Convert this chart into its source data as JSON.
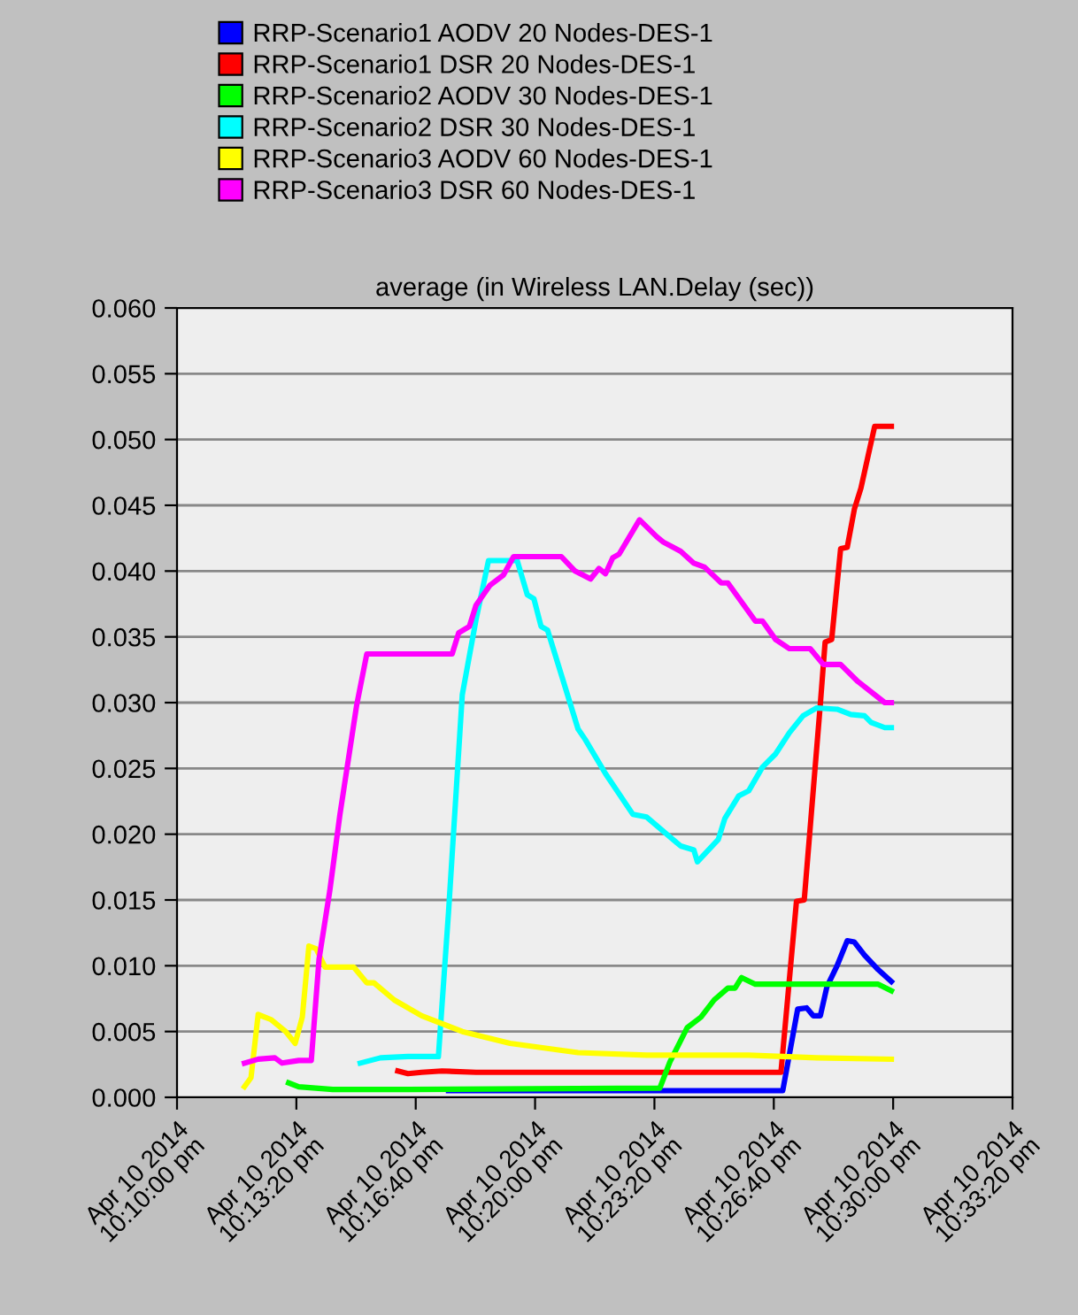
{
  "chart_data": {
    "type": "line",
    "title": "average (in Wireless LAN.Delay (sec))",
    "legend": "top",
    "grid": "y",
    "line_style": "solid",
    "marker": "none",
    "xlim": [
      "2014-04-10T22:10:00",
      "2014-04-10T22:33:20"
    ],
    "xticks": [
      {
        "value": "2014-04-10T22:10:00",
        "label": "Apr 10 2014\n10:10:00 pm"
      },
      {
        "value": "2014-04-10T22:13:20",
        "label": "Apr 10 2014\n10:13:20 pm"
      },
      {
        "value": "2014-04-10T22:16:40",
        "label": "Apr 10 2014\n10:16:40 pm"
      },
      {
        "value": "2014-04-10T22:20:00",
        "label": "Apr 10 2014\n10:20:00 pm"
      },
      {
        "value": "2014-04-10T22:23:20",
        "label": "Apr 10 2014\n10:23:20 pm"
      },
      {
        "value": "2014-04-10T22:26:40",
        "label": "Apr 10 2014\n10:26:40 pm"
      },
      {
        "value": "2014-04-10T22:30:00",
        "label": "Apr 10 2014\n10:30:00 pm"
      },
      {
        "value": "2014-04-10T22:33:20",
        "label": "Apr 10 2014\n10:33:20 pm"
      }
    ],
    "ylim": [
      0,
      0.06
    ],
    "yticks": [
      {
        "value": 0,
        "label": "0.000"
      },
      {
        "value": 0.005,
        "label": "0.005"
      },
      {
        "value": 0.01,
        "label": "0.010"
      },
      {
        "value": 0.015,
        "label": "0.015"
      },
      {
        "value": 0.02,
        "label": "0.020"
      },
      {
        "value": 0.025,
        "label": "0.025"
      },
      {
        "value": 0.03,
        "label": "0.030"
      },
      {
        "value": 0.035,
        "label": "0.035"
      },
      {
        "value": 0.04,
        "label": "0.040"
      },
      {
        "value": 0.045,
        "label": "0.045"
      },
      {
        "value": 0.05,
        "label": "0.050"
      },
      {
        "value": 0.055,
        "label": "0.055"
      },
      {
        "value": 0.06,
        "label": "0.060"
      }
    ],
    "series": [
      {
        "name": "RRP-Scenario1 AODV 20 Nodes-DES-1",
        "color": "#0000ff",
        "x": [
          "2014-04-10T22:17:35",
          "2014-04-10T22:26:55",
          "2014-04-10T22:27:20",
          "2014-04-10T22:27:35",
          "2014-04-10T22:27:46",
          "2014-04-10T22:27:58",
          "2014-04-10T22:28:09",
          "2014-04-10T22:28:26",
          "2014-04-10T22:28:43",
          "2014-04-10T22:28:55",
          "2014-04-10T22:29:12",
          "2014-04-10T22:29:35",
          "2014-04-10T22:29:57"
        ],
        "values": [
          0.0005,
          0.0005,
          0.0067,
          0.0068,
          0.0062,
          0.0062,
          0.0084,
          0.01,
          0.0119,
          0.0118,
          0.0108,
          0.0097,
          0.0088
        ]
      },
      {
        "name": "RRP-Scenario1 DSR 20 Nodes-DES-1",
        "color": "#ff0000",
        "x": [
          "2014-04-10T22:16:10",
          "2014-04-10T22:16:27",
          "2014-04-10T22:16:50",
          "2014-04-10T22:17:24",
          "2014-04-10T22:18:21",
          "2014-04-10T22:26:52",
          "2014-04-10T22:27:18",
          "2014-04-10T22:27:31",
          "2014-04-10T22:27:58",
          "2014-04-10T22:28:06",
          "2014-04-10T22:28:17",
          "2014-04-10T22:28:32",
          "2014-04-10T22:28:43",
          "2014-04-10T22:28:55",
          "2014-04-10T22:29:06",
          "2014-04-10T22:29:29",
          "2014-04-10T22:29:57"
        ],
        "values": [
          0.002,
          0.0018,
          0.0019,
          0.002,
          0.0019,
          0.0019,
          0.0149,
          0.015,
          0.0299,
          0.0346,
          0.0348,
          0.0417,
          0.0418,
          0.0447,
          0.0463,
          0.051,
          0.051
        ]
      },
      {
        "name": "RRP-Scenario2 AODV 30 Nodes-DES-1",
        "color": "#00ff00",
        "x": [
          "2014-04-10T22:13:07",
          "2014-04-10T22:13:24",
          "2014-04-10T22:14:21",
          "2014-04-10T22:16:27",
          "2014-04-10T22:23:29",
          "2014-04-10T22:23:46",
          "2014-04-10T22:24:15",
          "2014-04-10T22:24:38",
          "2014-04-10T22:25:00",
          "2014-04-10T22:25:23",
          "2014-04-10T22:25:35",
          "2014-04-10T22:25:46",
          "2014-04-10T22:26:09",
          "2014-04-10T22:29:35",
          "2014-04-10T22:29:57"
        ],
        "values": [
          0.0011,
          0.0008,
          0.0006,
          0.0006,
          0.0007,
          0.0027,
          0.0053,
          0.0061,
          0.0074,
          0.0083,
          0.0083,
          0.0091,
          0.0086,
          0.0086,
          0.0081
        ]
      },
      {
        "name": "RRP-Scenario2 DSR 30 Nodes-DES-1",
        "color": "#00ffff",
        "x": [
          "2014-04-10T22:15:07",
          "2014-04-10T22:15:24",
          "2014-04-10T22:15:41",
          "2014-04-10T22:16:27",
          "2014-04-10T22:17:18",
          "2014-04-10T22:17:35",
          "2014-04-10T22:17:58",
          "2014-04-10T22:18:21",
          "2014-04-10T22:18:42",
          "2014-04-10T22:19:30",
          "2014-04-10T22:19:47",
          "2014-04-10T22:19:58",
          "2014-04-10T22:20:10",
          "2014-04-10T22:20:21",
          "2014-04-10T22:21:12",
          "2014-04-10T22:21:24",
          "2014-04-10T22:21:58",
          "2014-04-10T22:22:44",
          "2014-04-10T22:23:07",
          "2014-04-10T22:24:04",
          "2014-04-10T22:24:26",
          "2014-04-10T22:24:32",
          "2014-04-10T22:25:07",
          "2014-04-10T22:25:18",
          "2014-04-10T22:25:41",
          "2014-04-10T22:25:58",
          "2014-04-10T22:26:21",
          "2014-04-10T22:26:43",
          "2014-04-10T22:27:06",
          "2014-04-10T22:27:29",
          "2014-04-10T22:27:52",
          "2014-04-10T22:28:26",
          "2014-04-10T22:28:49",
          "2014-04-10T22:29:12",
          "2014-04-10T22:29:23",
          "2014-04-10T22:29:46",
          "2014-04-10T22:29:57"
        ],
        "values": [
          0.0026,
          0.0028,
          0.003,
          0.0031,
          0.0031,
          0.0141,
          0.0306,
          0.0363,
          0.0408,
          0.0408,
          0.0382,
          0.0379,
          0.0358,
          0.0355,
          0.028,
          0.0272,
          0.0246,
          0.0215,
          0.0213,
          0.0191,
          0.0188,
          0.0179,
          0.0196,
          0.0212,
          0.0229,
          0.0233,
          0.0251,
          0.0261,
          0.0277,
          0.029,
          0.0296,
          0.0295,
          0.0291,
          0.029,
          0.0285,
          0.0281,
          0.0281
        ]
      },
      {
        "name": "RRP-Scenario3 AODV 60 Nodes-DES-1",
        "color": "#ffff00",
        "x": [
          "2014-04-10T22:11:53",
          "2014-04-10T22:12:04",
          "2014-04-10T22:12:16",
          "2014-04-10T22:12:27",
          "2014-04-10T22:12:38",
          "2014-04-10T22:13:02",
          "2014-04-10T22:13:18",
          "2014-04-10T22:13:30",
          "2014-04-10T22:13:41",
          "2014-04-10T22:13:53",
          "2014-04-10T22:14:08",
          "2014-04-10T22:14:56",
          "2014-04-10T22:15:18",
          "2014-04-10T22:15:30",
          "2014-04-10T22:16:04",
          "2014-04-10T22:16:50",
          "2014-04-10T22:17:58",
          "2014-04-10T22:19:18",
          "2014-04-10T22:21:12",
          "2014-04-10T22:23:07",
          "2014-04-10T22:25:58",
          "2014-04-10T22:27:52",
          "2014-04-10T22:29:57"
        ],
        "values": [
          0.0008,
          0.0015,
          0.0063,
          0.0061,
          0.0059,
          0.005,
          0.0041,
          0.0061,
          0.0115,
          0.0113,
          0.0099,
          0.0099,
          0.0087,
          0.0087,
          0.0074,
          0.0062,
          0.005,
          0.0041,
          0.0034,
          0.0032,
          0.0032,
          0.003,
          0.0029
        ]
      },
      {
        "name": "RRP-Scenario3 DSR 60 Nodes-DES-1",
        "color": "#ff00ff",
        "x": [
          "2014-04-10T22:11:53",
          "2014-04-10T22:12:16",
          "2014-04-10T22:12:44",
          "2014-04-10T22:12:56",
          "2014-04-10T22:13:24",
          "2014-04-10T22:13:45",
          "2014-04-10T22:13:58",
          "2014-04-10T22:14:16",
          "2014-04-10T22:14:33",
          "2014-04-10T22:15:01",
          "2014-04-10T22:15:18",
          "2014-04-10T22:17:41",
          "2014-04-10T22:17:52",
          "2014-04-10T22:18:10",
          "2014-04-10T22:18:21",
          "2014-04-10T22:18:44",
          "2014-04-10T22:19:07",
          "2014-04-10T22:19:24",
          "2014-04-10T22:20:44",
          "2014-04-10T22:21:07",
          "2014-04-10T22:21:33",
          "2014-04-10T22:21:47",
          "2014-04-10T22:21:58",
          "2014-04-10T22:22:10",
          "2014-04-10T22:22:21",
          "2014-04-10T22:22:55",
          "2014-04-10T22:23:24",
          "2014-04-10T22:23:35",
          "2014-04-10T22:24:04",
          "2014-04-10T22:24:26",
          "2014-04-10T22:24:44",
          "2014-04-10T22:25:12",
          "2014-04-10T22:25:23",
          "2014-04-10T22:26:09",
          "2014-04-10T22:26:21",
          "2014-04-10T22:26:43",
          "2014-04-10T22:27:06",
          "2014-04-10T22:27:41",
          "2014-04-10T22:28:03",
          "2014-04-10T22:28:32",
          "2014-04-10T22:29:01",
          "2014-04-10T22:29:46",
          "2014-04-10T22:29:57"
        ],
        "values": [
          0.0026,
          0.0029,
          0.003,
          0.0026,
          0.0028,
          0.0028,
          0.0105,
          0.0157,
          0.0215,
          0.0298,
          0.0337,
          0.0337,
          0.0353,
          0.0358,
          0.0374,
          0.0389,
          0.0397,
          0.0411,
          0.0411,
          0.04,
          0.0394,
          0.0402,
          0.0398,
          0.041,
          0.0413,
          0.0439,
          0.0426,
          0.0422,
          0.0415,
          0.0406,
          0.0403,
          0.0391,
          0.0391,
          0.0362,
          0.0362,
          0.0348,
          0.0341,
          0.0341,
          0.0329,
          0.0329,
          0.0316,
          0.03,
          0.03
        ]
      }
    ]
  }
}
